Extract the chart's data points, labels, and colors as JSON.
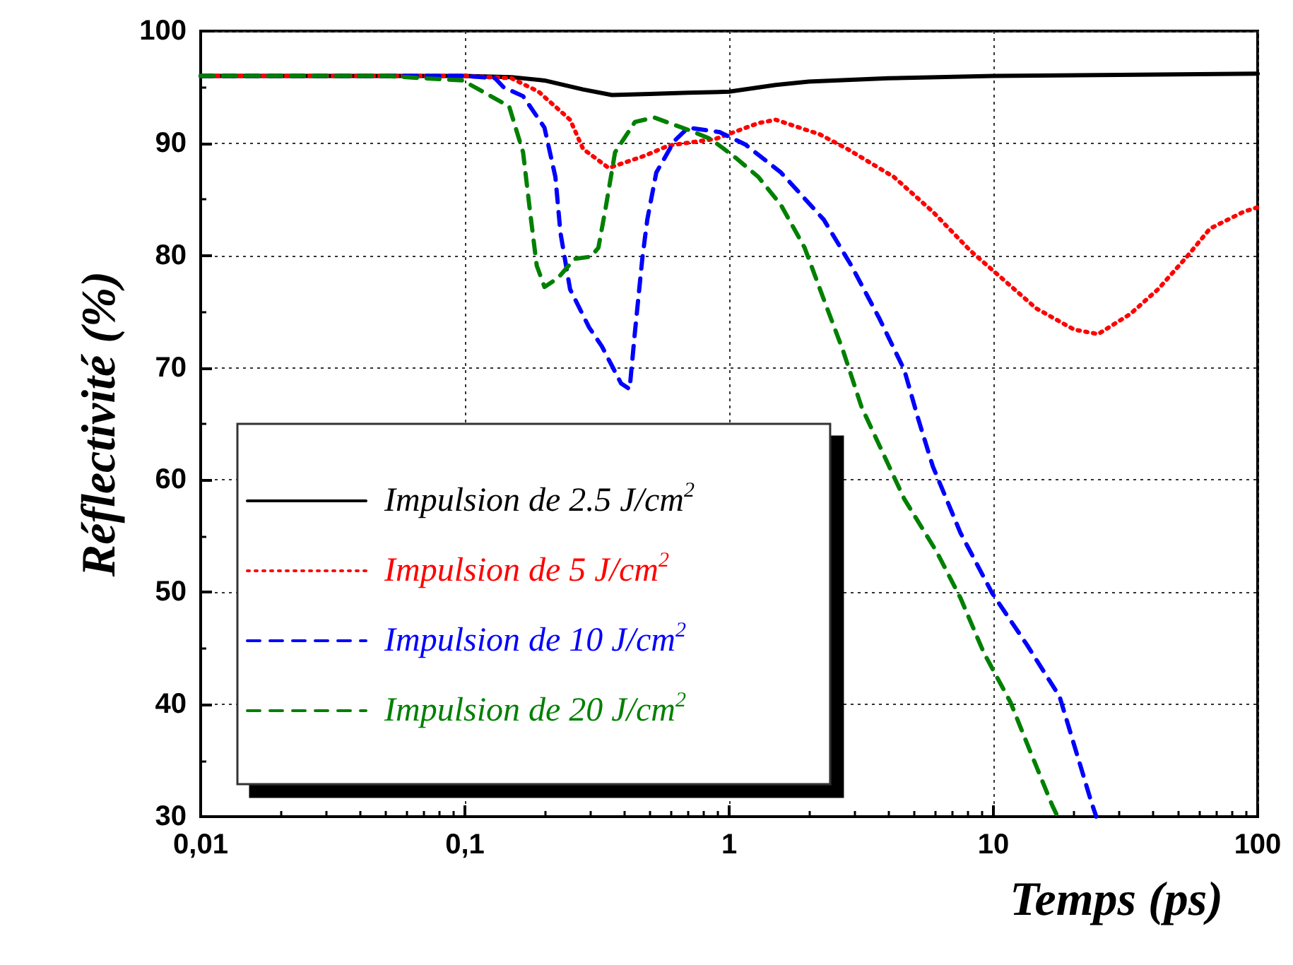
{
  "chart_data": {
    "type": "line",
    "xlabel": "Temps (ps)",
    "ylabel": "Réflectivité (%)",
    "log": "x",
    "xlim": [
      0.01,
      100
    ],
    "xticks": [
      {
        "value": 0.01,
        "label": "0,01"
      },
      {
        "value": 0.1,
        "label": "0,1"
      },
      1,
      10,
      100
    ],
    "ylim": [
      30,
      100
    ],
    "yticks": [
      30,
      40,
      50,
      60,
      70,
      80,
      90,
      100
    ],
    "grid": true,
    "legend": "bottom left",
    "marker": "none",
    "series": [
      {
        "name": "Impulsion de 2.5 J/cm$^{2}$",
        "color": "#000000",
        "line_style": "solid",
        "x": [
          0.01,
          0.05,
          0.1,
          0.15,
          0.2,
          0.28,
          0.36,
          0.5,
          0.7,
          1,
          1.5,
          2,
          4,
          10,
          30,
          100
        ],
        "values": [
          96,
          96,
          96,
          95.9,
          95.6,
          94.8,
          94.3,
          94.4,
          94.5,
          94.6,
          95.2,
          95.5,
          95.8,
          96,
          96.1,
          96.2
        ]
      },
      {
        "name": "Impulsion de 5 J/cm$^{2}$",
        "color": "#ff0000",
        "line_style": "dotted",
        "x": [
          0.01,
          0.05,
          0.1,
          0.15,
          0.19,
          0.25,
          0.28,
          0.35,
          0.48,
          0.59,
          0.89,
          1.29,
          1.5,
          2.2,
          2.8,
          4.2,
          5.9,
          8.2,
          10.5,
          14.5,
          20.2,
          24.9,
          33,
          42,
          54,
          66,
          88.5,
          100
        ],
        "values": [
          96,
          96,
          96,
          95.8,
          94.6,
          92.1,
          89.5,
          87.8,
          88.9,
          89.8,
          90.4,
          91.8,
          92.1,
          90.8,
          89.5,
          87,
          83.9,
          80.4,
          78.2,
          75.3,
          73.4,
          73,
          74.8,
          77,
          79.9,
          82.4,
          83.9,
          84.3
        ]
      },
      {
        "name": "Impulsion de 10 J/cm$^{2}$",
        "color": "#0000ff",
        "line_style": "dashed",
        "x": [
          0.01,
          0.05,
          0.1,
          0.13,
          0.14,
          0.166,
          0.2,
          0.22,
          0.23,
          0.25,
          0.295,
          0.33,
          0.39,
          0.42,
          0.44,
          0.47,
          0.49,
          0.53,
          0.62,
          0.7,
          0.92,
          1.15,
          1.57,
          2.28,
          2.9,
          3.7,
          4.6,
          5.2,
          5.9,
          7.5,
          9.9,
          13.4,
          17.8,
          20.2,
          23.4,
          24.5
        ],
        "values": [
          96,
          96,
          96,
          95.8,
          95,
          94.2,
          91.4,
          87,
          82,
          77,
          73.6,
          71.9,
          68.6,
          68.1,
          73.2,
          79.9,
          83.2,
          87.4,
          90.2,
          91.4,
          91,
          89.9,
          87.4,
          83.2,
          79.1,
          74.4,
          69.8,
          65.4,
          61.2,
          55.3,
          49.9,
          45.3,
          40.7,
          36.4,
          31.4,
          30
        ]
      },
      {
        "name": "Impulsion de 20 J/cm$^{2}$",
        "color": "#008000",
        "line_style": "dashed",
        "x": [
          0.01,
          0.05,
          0.098,
          0.147,
          0.166,
          0.176,
          0.187,
          0.2,
          0.225,
          0.26,
          0.3,
          0.32,
          0.34,
          0.37,
          0.44,
          0.52,
          0.7,
          0.85,
          1.06,
          1.29,
          1.57,
          1.93,
          2.28,
          2.7,
          3.17,
          3.6,
          4.6,
          6.1,
          7.5,
          9.2,
          11.6,
          13.9,
          16.7,
          17.5
        ],
        "values": [
          96,
          96,
          95.6,
          93.3,
          89.2,
          84.1,
          79.1,
          77.2,
          78,
          79.7,
          79.9,
          80.7,
          84.1,
          89.2,
          91.9,
          92.3,
          91.2,
          90.4,
          88.7,
          87,
          84.5,
          80.7,
          76.1,
          71.5,
          66.5,
          63.7,
          58.3,
          53.6,
          49.5,
          44.6,
          40.2,
          35.6,
          31,
          30
        ]
      }
    ]
  }
}
